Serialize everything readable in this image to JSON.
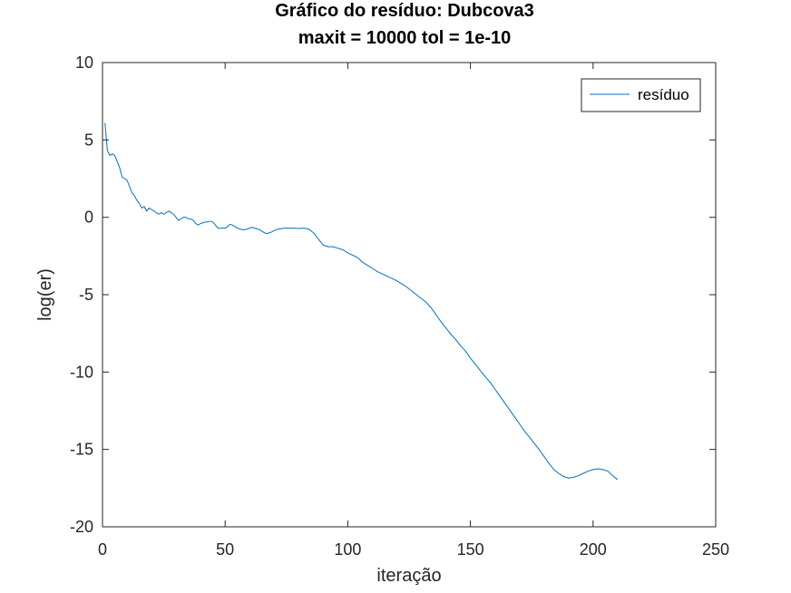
{
  "chart_data": {
    "type": "line",
    "title": "Gráfico do resíduo:  Dubcova3",
    "subtitle": "maxit = 10000 tol = 1e-10",
    "xlabel": "iteração",
    "ylabel": "log(er)",
    "xlim": [
      0,
      250
    ],
    "ylim": [
      -20,
      10
    ],
    "xticks": [
      0,
      50,
      100,
      150,
      200,
      250
    ],
    "yticks": [
      -20,
      -15,
      -10,
      -5,
      0,
      5,
      10
    ],
    "xtick_labels": [
      "0",
      "50",
      "100",
      "150",
      "200",
      "250"
    ],
    "ytick_labels": [
      "-20",
      "-15",
      "-10",
      "-5",
      "0",
      "5",
      "10"
    ],
    "grid": false,
    "legend_position": "top-right",
    "series": [
      {
        "name": "resíduo",
        "color": "#0072BD",
        "points": [
          [
            1,
            6.1
          ],
          [
            2,
            4.3
          ],
          [
            3,
            4.0
          ],
          [
            4,
            4.1
          ],
          [
            5,
            4.0
          ],
          [
            6,
            3.6
          ],
          [
            7,
            3.2
          ],
          [
            8,
            2.6
          ],
          [
            9,
            2.5
          ],
          [
            10,
            2.4
          ],
          [
            11,
            2.0
          ],
          [
            12,
            1.6
          ],
          [
            13,
            1.4
          ],
          [
            14,
            1.1
          ],
          [
            15,
            0.9
          ],
          [
            16,
            0.6
          ],
          [
            17,
            0.7
          ],
          [
            18,
            0.4
          ],
          [
            19,
            0.6
          ],
          [
            20,
            0.5
          ],
          [
            21,
            0.4
          ],
          [
            22,
            0.3
          ],
          [
            23,
            0.2
          ],
          [
            24,
            0.3
          ],
          [
            25,
            0.2
          ],
          [
            26,
            0.3
          ],
          [
            27,
            0.4
          ],
          [
            28,
            0.3
          ],
          [
            29,
            0.2
          ],
          [
            30,
            0.0
          ],
          [
            31,
            -0.2
          ],
          [
            32,
            -0.1
          ],
          [
            33,
            0.0
          ],
          [
            34,
            0.0
          ],
          [
            35,
            -0.1
          ],
          [
            36,
            -0.1
          ],
          [
            37,
            -0.2
          ],
          [
            38,
            -0.4
          ],
          [
            39,
            -0.5
          ],
          [
            40,
            -0.4
          ],
          [
            41,
            -0.35
          ],
          [
            42,
            -0.3
          ],
          [
            43,
            -0.3
          ],
          [
            44,
            -0.25
          ],
          [
            45,
            -0.3
          ],
          [
            46,
            -0.5
          ],
          [
            47,
            -0.7
          ],
          [
            48,
            -0.7
          ],
          [
            49,
            -0.7
          ],
          [
            50,
            -0.7
          ],
          [
            51,
            -0.6
          ],
          [
            52,
            -0.45
          ],
          [
            53,
            -0.5
          ],
          [
            54,
            -0.6
          ],
          [
            55,
            -0.7
          ],
          [
            56,
            -0.75
          ],
          [
            57,
            -0.8
          ],
          [
            58,
            -0.8
          ],
          [
            59,
            -0.75
          ],
          [
            60,
            -0.7
          ],
          [
            61,
            -0.65
          ],
          [
            62,
            -0.7
          ],
          [
            63,
            -0.75
          ],
          [
            64,
            -0.8
          ],
          [
            65,
            -0.9
          ],
          [
            66,
            -1.0
          ],
          [
            67,
            -1.05
          ],
          [
            68,
            -1.0
          ],
          [
            69,
            -0.95
          ],
          [
            70,
            -0.85
          ],
          [
            72,
            -0.75
          ],
          [
            74,
            -0.7
          ],
          [
            76,
            -0.7
          ],
          [
            78,
            -0.7
          ],
          [
            80,
            -0.72
          ],
          [
            82,
            -0.7
          ],
          [
            84,
            -0.75
          ],
          [
            86,
            -1.0
          ],
          [
            88,
            -1.4
          ],
          [
            90,
            -1.8
          ],
          [
            92,
            -1.9
          ],
          [
            94,
            -1.9
          ],
          [
            96,
            -2.0
          ],
          [
            98,
            -2.1
          ],
          [
            100,
            -2.3
          ],
          [
            102,
            -2.45
          ],
          [
            104,
            -2.6
          ],
          [
            106,
            -2.9
          ],
          [
            108,
            -3.1
          ],
          [
            110,
            -3.3
          ],
          [
            112,
            -3.5
          ],
          [
            114,
            -3.65
          ],
          [
            116,
            -3.8
          ],
          [
            118,
            -3.95
          ],
          [
            120,
            -4.1
          ],
          [
            122,
            -4.3
          ],
          [
            124,
            -4.5
          ],
          [
            126,
            -4.75
          ],
          [
            128,
            -5.0
          ],
          [
            130,
            -5.25
          ],
          [
            132,
            -5.5
          ],
          [
            134,
            -5.85
          ],
          [
            136,
            -6.3
          ],
          [
            138,
            -6.75
          ],
          [
            140,
            -7.15
          ],
          [
            142,
            -7.55
          ],
          [
            144,
            -7.9
          ],
          [
            146,
            -8.3
          ],
          [
            148,
            -8.65
          ],
          [
            150,
            -9.1
          ],
          [
            152,
            -9.5
          ],
          [
            154,
            -9.9
          ],
          [
            156,
            -10.3
          ],
          [
            158,
            -10.65
          ],
          [
            160,
            -11.1
          ],
          [
            162,
            -11.55
          ],
          [
            164,
            -12.0
          ],
          [
            166,
            -12.45
          ],
          [
            168,
            -12.9
          ],
          [
            170,
            -13.35
          ],
          [
            172,
            -13.8
          ],
          [
            174,
            -14.2
          ],
          [
            176,
            -14.6
          ],
          [
            178,
            -15.0
          ],
          [
            180,
            -15.45
          ],
          [
            182,
            -15.9
          ],
          [
            184,
            -16.3
          ],
          [
            186,
            -16.55
          ],
          [
            188,
            -16.75
          ],
          [
            190,
            -16.85
          ],
          [
            192,
            -16.8
          ],
          [
            194,
            -16.7
          ],
          [
            196,
            -16.55
          ],
          [
            198,
            -16.4
          ],
          [
            200,
            -16.3
          ],
          [
            202,
            -16.25
          ],
          [
            204,
            -16.3
          ],
          [
            206,
            -16.4
          ],
          [
            208,
            -16.7
          ],
          [
            210,
            -16.95
          ]
        ]
      }
    ]
  }
}
